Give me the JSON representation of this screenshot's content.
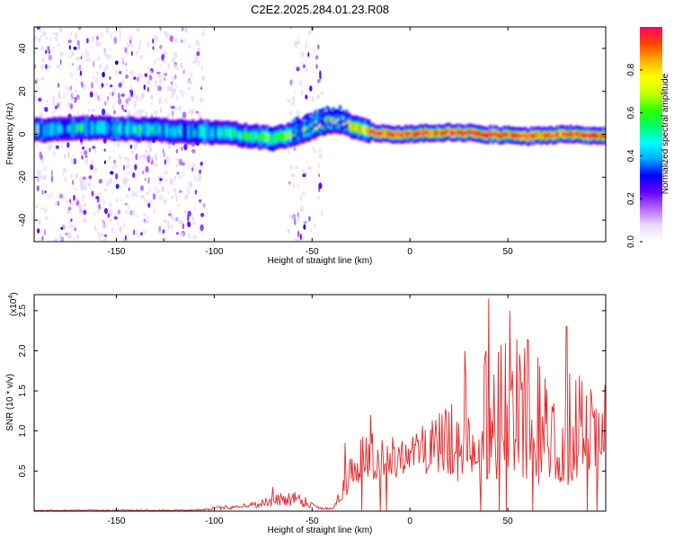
{
  "title": "C2E2.2025.284.01.23.R08",
  "chart_data": [
    {
      "type": "heatmap",
      "xlabel": "Height of straight line (km)",
      "ylabel": "Frequency (Hz)",
      "xlim": [
        -192,
        100
      ],
      "ylim": [
        -50,
        50
      ],
      "xticks": [
        -150,
        -100,
        -50,
        0,
        50
      ],
      "xtick_labels": [
        "-150",
        "-100",
        "-50",
        "0",
        "50"
      ],
      "yticks": [
        -40,
        -20,
        0,
        20,
        40
      ],
      "ytick_labels": [
        "-40",
        "-20",
        "0",
        "20",
        "40"
      ],
      "ridge": {
        "x": [
          -192,
          -160,
          -130,
          -110,
          -95,
          -80,
          -70,
          -60,
          -50,
          -42,
          -36,
          -30,
          -25,
          -20,
          -10,
          0,
          20,
          40,
          60,
          80,
          100
        ],
        "freq": [
          2,
          3,
          2,
          1,
          1,
          -1,
          -2,
          0,
          3,
          6,
          6,
          4,
          2,
          1,
          0,
          0,
          1,
          0,
          -1,
          0,
          -1
        ]
      },
      "colorbar": {
        "label": "Normalized spectral amplitude",
        "ticks": [
          0.0,
          0.2,
          0.4,
          0.6,
          0.8
        ],
        "tick_labels": [
          "0.0",
          "0.2",
          "0.4",
          "0.6",
          "0.8"
        ],
        "range": [
          0,
          1
        ],
        "colors": [
          "#ffffff",
          "#ecd9ff",
          "#b366ff",
          "#6600ff",
          "#0000ff",
          "#00aaff",
          "#00ffff",
          "#00ff66",
          "#33ff00",
          "#ccff00",
          "#ffff00",
          "#ffaa00",
          "#ff4400",
          "#ff0066"
        ]
      }
    },
    {
      "type": "line",
      "xlabel": "Height of straight line (km)",
      "ylabel": "SNR (10 * v/v)",
      "y_multiplier": "(x10",
      "y_multiplier_exp": "4",
      "y_multiplier_close": ")",
      "xlim": [
        -192,
        100
      ],
      "ylim": [
        0,
        2.7
      ],
      "xticks": [
        -150,
        -100,
        -50,
        0,
        50
      ],
      "xtick_labels": [
        "-150",
        "-100",
        "-50",
        "0",
        "50"
      ],
      "yticks": [
        0.5,
        1.0,
        1.5,
        2.0,
        2.5
      ],
      "ytick_labels": [
        "0.5",
        "1.0",
        "1.5",
        "2.0",
        "2.5"
      ],
      "color": "#e8262a",
      "envelope": {
        "x": [
          -192,
          -110,
          -95,
          -80,
          -70,
          -60,
          -55,
          -50,
          -45,
          -40,
          -38,
          -35,
          -32,
          -30,
          -25,
          -20,
          -15,
          -10,
          -5,
          0,
          10,
          20,
          25,
          30,
          40,
          50,
          60,
          70,
          80,
          90,
          100
        ],
        "low": [
          0.005,
          0.005,
          0.02,
          0.04,
          0.05,
          0.06,
          0.05,
          0.03,
          0.02,
          0.02,
          0.05,
          0.1,
          0.2,
          0.25,
          0.3,
          0.35,
          0.35,
          0.4,
          0.4,
          0.4,
          0.4,
          0.45,
          0.35,
          0.4,
          0.3,
          0.3,
          0.3,
          0.3,
          0.3,
          0.3,
          0.3
        ],
        "high": [
          0.015,
          0.02,
          0.07,
          0.12,
          0.2,
          0.28,
          0.22,
          0.12,
          0.05,
          0.05,
          0.15,
          0.3,
          0.6,
          0.8,
          0.95,
          1.0,
          0.95,
          1.0,
          1.0,
          1.0,
          1.1,
          1.35,
          1.5,
          1.8,
          2.1,
          2.2,
          2.2,
          2.05,
          1.85,
          1.65,
          1.6
        ]
      },
      "peaks": [
        {
          "x": 40,
          "y": 2.65
        },
        {
          "x": 51,
          "y": 2.5
        },
        {
          "x": 80,
          "y": 2.3
        },
        {
          "x": 28,
          "y": 2.0
        },
        {
          "x": -20,
          "y": 1.2
        },
        {
          "x": -33,
          "y": 0.85
        },
        {
          "x": -70,
          "y": 0.3
        }
      ]
    }
  ]
}
